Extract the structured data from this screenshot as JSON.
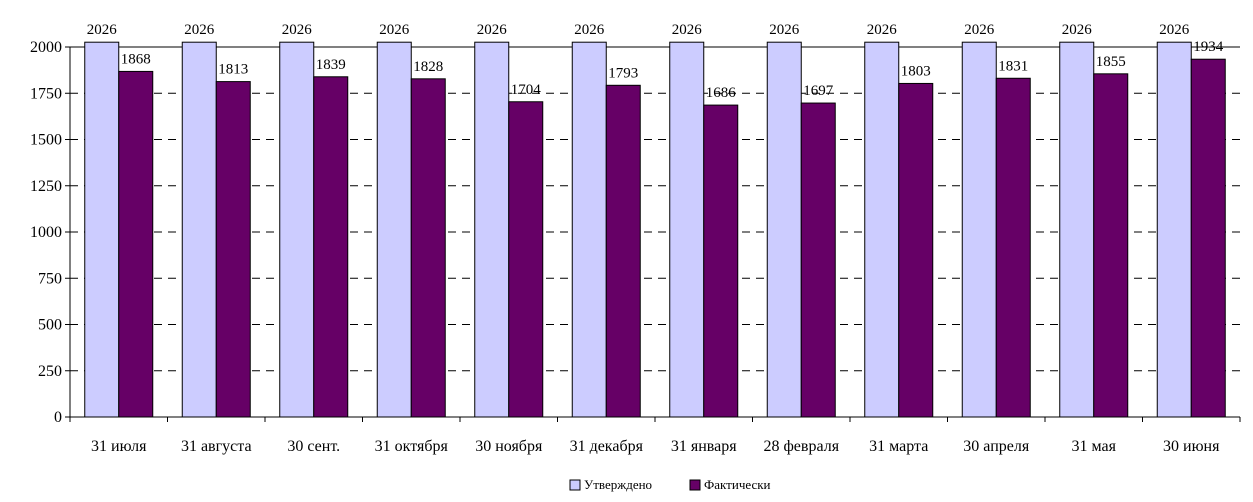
{
  "chart_data": {
    "type": "bar",
    "categories": [
      "31 июля",
      "31 августа",
      "30 сент.",
      "31 октября",
      "30 ноября",
      "31 декабря",
      "31 января",
      "28 февраля",
      "31 марта",
      "30 апреля",
      "31  мая",
      "30 июня"
    ],
    "series": [
      {
        "name": "Утверждено",
        "values": [
          2026,
          2026,
          2026,
          2026,
          2026,
          2026,
          2026,
          2026,
          2026,
          2026,
          2026,
          2026
        ],
        "color": "#ccccff"
      },
      {
        "name": "Фактически",
        "values": [
          1868,
          1813,
          1839,
          1828,
          1704,
          1793,
          1686,
          1697,
          1803,
          1831,
          1855,
          1934
        ],
        "color": "#660066"
      }
    ],
    "y_ticks": [
      "0",
      "250",
      "500",
      "750",
      "1000",
      "1250",
      "1500",
      "1750",
      "2000"
    ],
    "ylim": [
      0,
      2000
    ],
    "grid": "dashed-horizontal",
    "legend_position": "bottom-center",
    "title": "",
    "xlabel": "",
    "ylabel": ""
  }
}
